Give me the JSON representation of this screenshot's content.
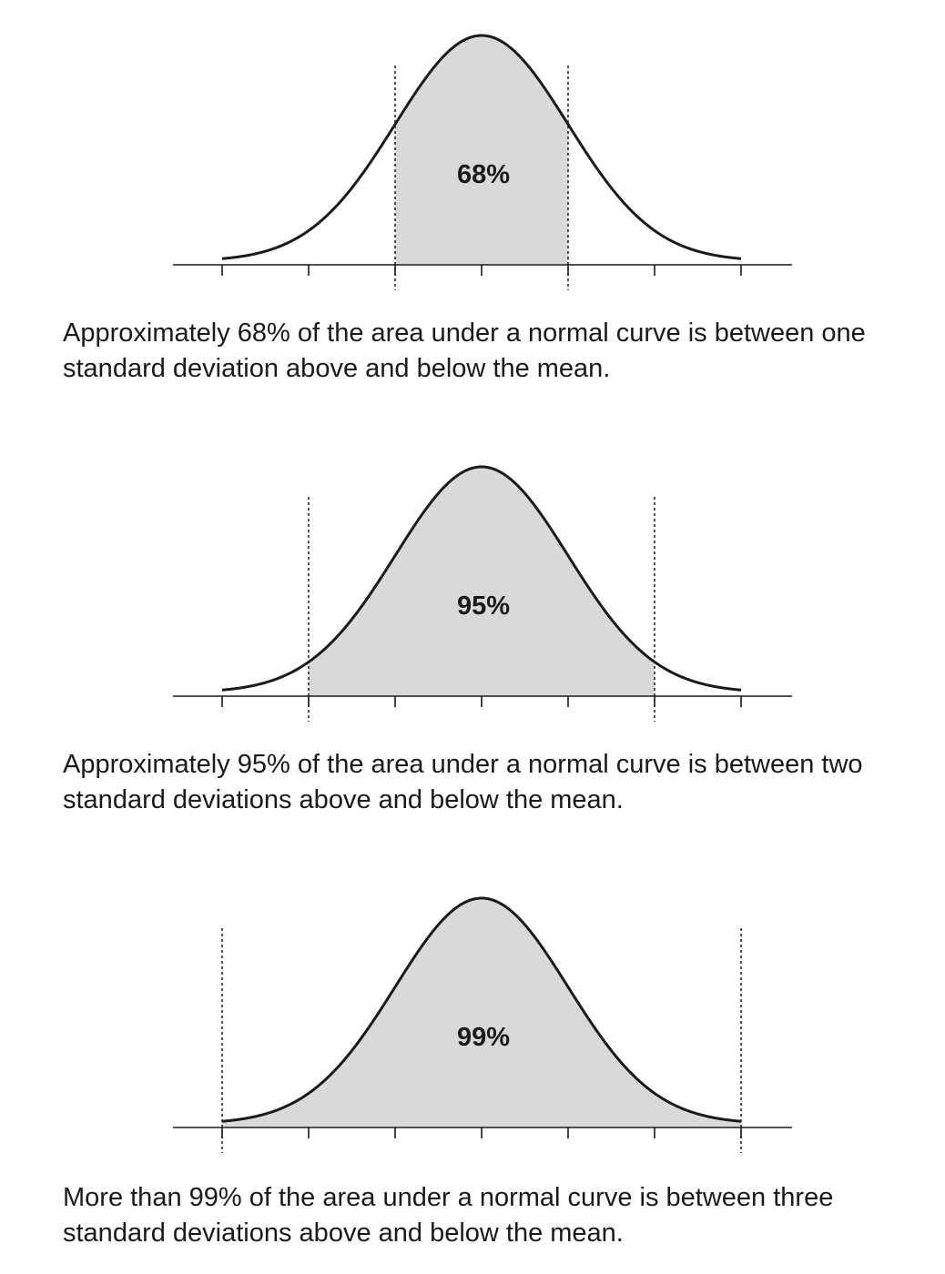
{
  "panels": [
    {
      "label": "68%",
      "sigma_bound": 1,
      "caption_line1": "Approximately 68% of the area under a normal curve is between one",
      "caption_line2": "standard deviation above and below the mean."
    },
    {
      "label": "95%",
      "sigma_bound": 2,
      "caption_line1": "Approximately 95% of the area under a normal curve is between two",
      "caption_line2": "standard deviations above and below the mean."
    },
    {
      "label": "99%",
      "sigma_bound": 3,
      "caption_line1": "More than 99% of the area under a normal curve is between three",
      "caption_line2": "standard deviations above and below the mean."
    }
  ],
  "ticks": [
    -3,
    -2,
    -1,
    0,
    1,
    2,
    3
  ],
  "colors": {
    "shade": "#d9d9d9",
    "curve": "#1a1a1a",
    "axis": "#1a1a1a"
  }
}
